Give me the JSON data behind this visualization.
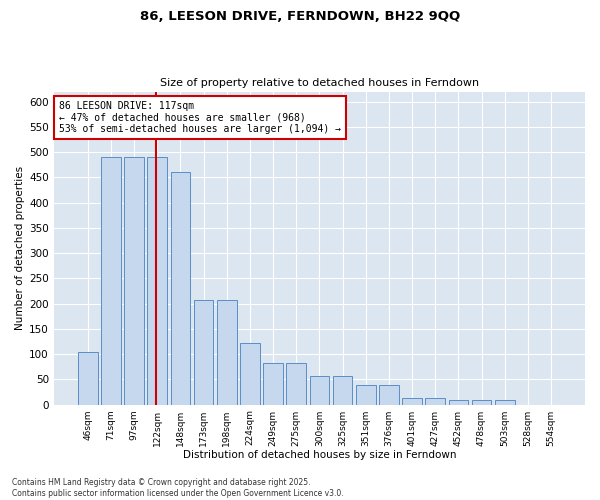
{
  "title": "86, LEESON DRIVE, FERNDOWN, BH22 9QQ",
  "subtitle": "Size of property relative to detached houses in Ferndown",
  "xlabel": "Distribution of detached houses by size in Ferndown",
  "ylabel": "Number of detached properties",
  "categories": [
    "46sqm",
    "71sqm",
    "97sqm",
    "122sqm",
    "148sqm",
    "173sqm",
    "198sqm",
    "224sqm",
    "249sqm",
    "275sqm",
    "300sqm",
    "325sqm",
    "351sqm",
    "376sqm",
    "401sqm",
    "427sqm",
    "452sqm",
    "478sqm",
    "503sqm",
    "528sqm",
    "554sqm"
  ],
  "values": [
    105,
    490,
    490,
    490,
    460,
    207,
    207,
    122,
    82,
    82,
    57,
    57,
    38,
    38,
    13,
    13,
    10,
    10,
    10,
    0,
    0
  ],
  "bar_color": "#c5d8ed",
  "bar_edge_color": "#5b8dc8",
  "vline_x_index": 3,
  "vline_color": "#cc0000",
  "annotation_text": "86 LEESON DRIVE: 117sqm\n← 47% of detached houses are smaller (968)\n53% of semi-detached houses are larger (1,094) →",
  "annotation_box_color": "#cc0000",
  "plot_background": "#dce6f1",
  "footer": "Contains HM Land Registry data © Crown copyright and database right 2025.\nContains public sector information licensed under the Open Government Licence v3.0.",
  "ylim": [
    0,
    620
  ],
  "yticks": [
    0,
    50,
    100,
    150,
    200,
    250,
    300,
    350,
    400,
    450,
    500,
    550,
    600
  ]
}
